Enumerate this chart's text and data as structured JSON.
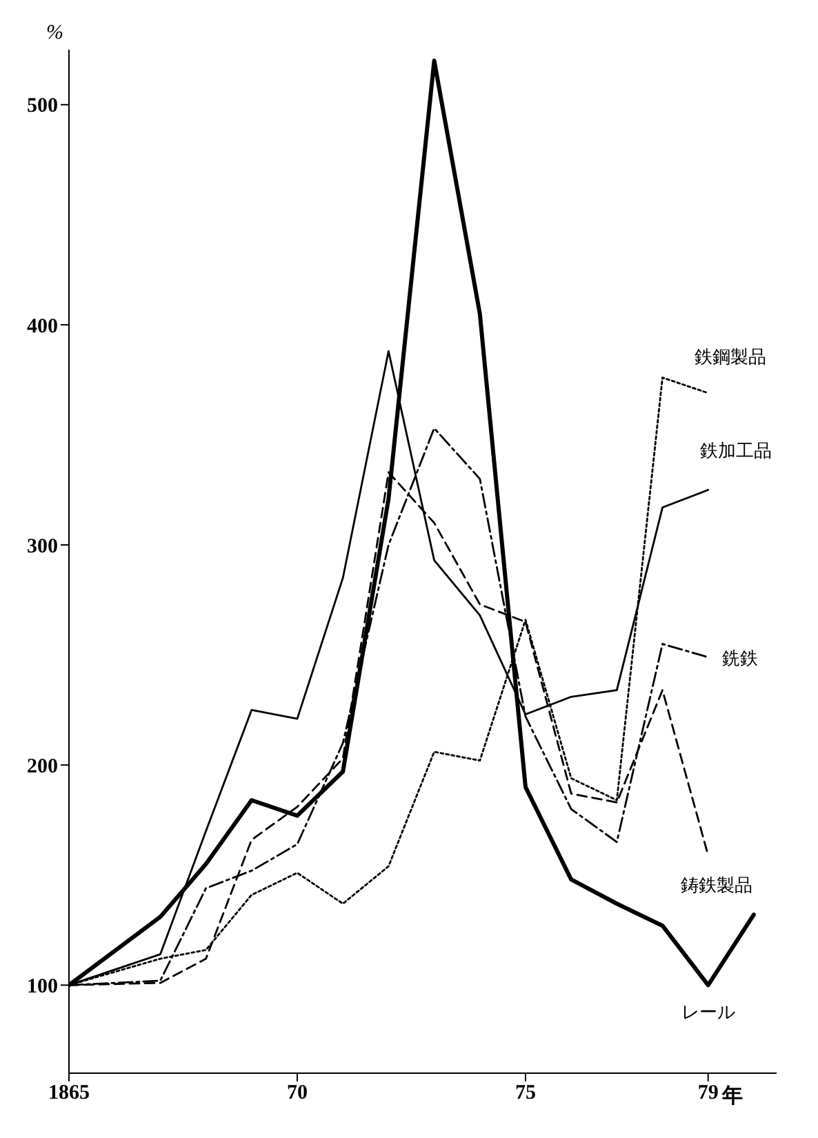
{
  "chart_data": {
    "type": "line",
    "ylabel": "%",
    "xlim": [
      1865,
      1880.5
    ],
    "xlabel": "年",
    "xticks": [
      1865,
      {
        "value": 1870,
        "label": "70"
      },
      {
        "value": 1875,
        "label": "75"
      },
      {
        "value": 1879,
        "label": "79"
      }
    ],
    "ylim": [
      60,
      525
    ],
    "yticks": [
      100,
      200,
      300,
      400,
      500
    ],
    "grid": false,
    "legend": false,
    "marker": "none",
    "x": [
      1865,
      1866,
      1867,
      1868,
      1869,
      1870,
      1871,
      1872,
      1873,
      1874,
      1875,
      1876,
      1877,
      1878,
      1879,
      1880
    ],
    "series": [
      {
        "name": "鉄鋼製品",
        "color": "#000000",
        "line_style": "dotted",
        "values": [
          100,
          null,
          112,
          116,
          141,
          151,
          137,
          154,
          206,
          202,
          266,
          194,
          184,
          376,
          369,
          null
        ]
      },
      {
        "name": "鉄加工品",
        "color": "#000000",
        "line_style": "solid",
        "values": [
          100,
          null,
          114,
          170,
          225,
          221,
          285,
          388,
          293,
          268,
          223,
          231,
          234,
          317,
          325,
          null
        ]
      },
      {
        "name": "銑鉄",
        "color": "#000000",
        "line_style": "dashdot",
        "values": [
          100,
          null,
          102,
          144,
          152,
          164,
          210,
          300,
          353,
          330,
          222,
          180,
          165,
          255,
          249,
          null
        ]
      },
      {
        "name": "鋳鉄製品",
        "color": "#000000",
        "line_style": "dashed",
        "values": [
          100,
          null,
          101,
          112,
          166,
          181,
          203,
          333,
          310,
          273,
          265,
          187,
          183,
          234,
          159,
          null
        ]
      },
      {
        "name": "レール",
        "color": "#000000",
        "line_style": "solid",
        "values": [
          100,
          null,
          131,
          155,
          184,
          177,
          197,
          321,
          520,
          405,
          190,
          148,
          137,
          127,
          100,
          132
        ]
      }
    ]
  }
}
